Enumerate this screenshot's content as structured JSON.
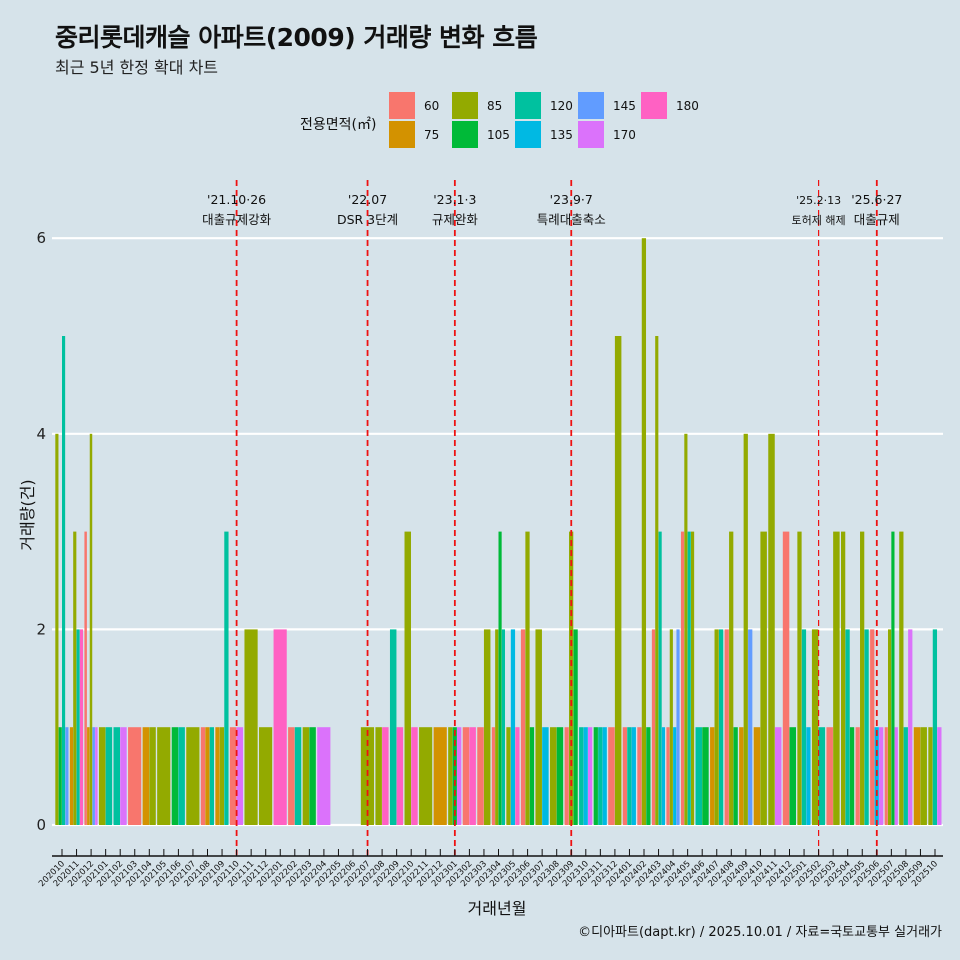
{
  "header": {
    "title": "중리롯데캐슬 아파트(2009) 거래량 변화 흐름",
    "subtitle": "최근 5년 한정 확대 차트"
  },
  "legend": {
    "title": "전용면적(㎡)",
    "items": [
      {
        "label": "60",
        "color": "#F8766D"
      },
      {
        "label": "75",
        "color": "#D39200"
      },
      {
        "label": "85",
        "color": "#93AA00"
      },
      {
        "label": "105",
        "color": "#00BA38"
      },
      {
        "label": "120",
        "color": "#00C19F"
      },
      {
        "label": "135",
        "color": "#00B9E3"
      },
      {
        "label": "145",
        "color": "#619CFF"
      },
      {
        "label": "170",
        "color": "#DB72FB"
      },
      {
        "label": "180",
        "color": "#FF61C3"
      }
    ]
  },
  "caption": "©디아파트(dapt.kr) / 2025.10.01 / 자료=국토교통부 실거래가",
  "chart_data": {
    "type": "bar",
    "title": "중리롯데캐슬 아파트(2009) 거래량 변화 흐름",
    "subtitle": "최근 5년 한정 확대 차트",
    "xlabel": "거래년월",
    "ylabel": "거래량(건)",
    "ylim": [
      0,
      6.3
    ],
    "yticks": [
      0,
      2,
      4,
      6
    ],
    "grid": true,
    "legend_position": "top",
    "categories": [
      "202010",
      "202011",
      "202012",
      "202101",
      "202102",
      "202103",
      "202104",
      "202105",
      "202106",
      "202107",
      "202108",
      "202109",
      "202110",
      "202111",
      "202112",
      "202201",
      "202202",
      "202203",
      "202204",
      "202205",
      "202206",
      "202207",
      "202208",
      "202209",
      "202210",
      "202211",
      "202212",
      "202301",
      "202302",
      "202303",
      "202304",
      "202305",
      "202306",
      "202307",
      "202308",
      "202309",
      "202310",
      "202311",
      "202312",
      "202401",
      "202402",
      "202403",
      "202404",
      "202405",
      "202406",
      "202407",
      "202408",
      "202409",
      "202410",
      "202411",
      "202412",
      "202501",
      "202502",
      "202503",
      "202504",
      "202505",
      "202506",
      "202507",
      "202508",
      "202509",
      "202510"
    ],
    "bars": [
      [
        [
          "85",
          4
        ],
        [
          "105",
          1
        ],
        [
          "120",
          5
        ],
        [
          "145",
          1
        ]
      ],
      [
        [
          "75",
          1
        ],
        [
          "85",
          3
        ],
        [
          "120",
          2
        ],
        [
          "180",
          2
        ]
      ],
      [
        [
          "60",
          3
        ],
        [
          "75",
          1
        ],
        [
          "85",
          4
        ],
        [
          "145",
          1
        ],
        [
          "170",
          1
        ]
      ],
      [
        [
          "85",
          1
        ],
        [
          "120",
          1
        ]
      ],
      [
        [
          "120",
          1
        ],
        [
          "170",
          1
        ]
      ],
      [
        [
          "60",
          1
        ]
      ],
      [
        [
          "75",
          1
        ],
        [
          "85",
          1
        ]
      ],
      [
        [
          "85",
          1
        ]
      ],
      [
        [
          "105",
          1
        ],
        [
          "120",
          1
        ]
      ],
      [
        [
          "85",
          1
        ]
      ],
      [
        [
          "60",
          1
        ],
        [
          "75",
          1
        ],
        [
          "120",
          1
        ]
      ],
      [
        [
          "75",
          1
        ],
        [
          "85",
          1
        ],
        [
          "120",
          3
        ]
      ],
      [
        [
          "60",
          1
        ],
        [
          "170",
          1
        ]
      ],
      [
        [
          "85",
          2
        ]
      ],
      [
        [
          "85",
          1
        ]
      ],
      [
        [
          "180",
          2
        ]
      ],
      [
        [
          "60",
          1
        ],
        [
          "120",
          1
        ]
      ],
      [
        [
          "85",
          1
        ],
        [
          "105",
          1
        ]
      ],
      [
        [
          "170",
          1
        ]
      ],
      [],
      [],
      [
        [
          "85",
          1
        ]
      ],
      [
        [
          "85",
          1
        ],
        [
          "180",
          1
        ]
      ],
      [
        [
          "120",
          2
        ],
        [
          "180",
          1
        ]
      ],
      [
        [
          "85",
          3
        ],
        [
          "180",
          1
        ]
      ],
      [
        [
          "85",
          1
        ]
      ],
      [
        [
          "75",
          1
        ]
      ],
      [
        [
          "85",
          1
        ],
        [
          "105",
          1
        ],
        [
          "170",
          1
        ]
      ],
      [
        [
          "60",
          1
        ],
        [
          "180",
          1
        ]
      ],
      [
        [
          "60",
          1
        ],
        [
          "85",
          2
        ]
      ],
      [
        [
          "60",
          1
        ],
        [
          "85",
          2
        ],
        [
          "105",
          3
        ],
        [
          "120",
          2
        ]
      ],
      [
        [
          "85",
          1
        ],
        [
          "135",
          2
        ],
        [
          "180",
          1
        ]
      ],
      [
        [
          "60",
          2
        ],
        [
          "85",
          3
        ],
        [
          "105",
          1
        ]
      ],
      [
        [
          "85",
          2
        ],
        [
          "135",
          1
        ]
      ],
      [
        [
          "85",
          1
        ],
        [
          "105",
          1
        ]
      ],
      [
        [
          "60",
          1
        ],
        [
          "85",
          3
        ],
        [
          "105",
          2
        ]
      ],
      [
        [
          "120",
          1
        ],
        [
          "135",
          1
        ],
        [
          "170",
          1
        ]
      ],
      [
        [
          "105",
          1
        ],
        [
          "120",
          1
        ],
        [
          "135",
          1
        ]
      ],
      [
        [
          "60",
          1
        ],
        [
          "85",
          5
        ]
      ],
      [
        [
          "60",
          1
        ],
        [
          "120",
          1
        ],
        [
          "135",
          1
        ]
      ],
      [
        [
          "60",
          1
        ],
        [
          "85",
          6
        ],
        [
          "105",
          1
        ]
      ],
      [
        [
          "60",
          2
        ],
        [
          "85",
          5
        ],
        [
          "120",
          3
        ],
        [
          "135",
          1
        ]
      ],
      [
        [
          "60",
          1
        ],
        [
          "85",
          2
        ],
        [
          "135",
          1
        ],
        [
          "145",
          2
        ]
      ],
      [
        [
          "60",
          3
        ],
        [
          "85",
          4
        ],
        [
          "120",
          3
        ],
        [
          "85",
          3
        ]
      ],
      [
        [
          "120",
          1
        ],
        [
          "105",
          1
        ]
      ],
      [
        [
          "75",
          1
        ],
        [
          "85",
          2
        ],
        [
          "120",
          2
        ]
      ],
      [
        [
          "60",
          2
        ],
        [
          "85",
          3
        ],
        [
          "105",
          1
        ]
      ],
      [
        [
          "75",
          1
        ],
        [
          "85",
          4
        ],
        [
          "145",
          2
        ]
      ],
      [
        [
          "75",
          1
        ],
        [
          "85",
          3
        ]
      ],
      [
        [
          "85",
          4
        ],
        [
          "170",
          1
        ]
      ],
      [
        [
          "60",
          3
        ],
        [
          "105",
          1
        ]
      ],
      [
        [
          "85",
          3
        ],
        [
          "120",
          2
        ],
        [
          "135",
          1
        ]
      ],
      [
        [
          "85",
          2
        ],
        [
          "120",
          1
        ]
      ],
      [
        [
          "60",
          1
        ],
        [
          "85",
          3
        ]
      ],
      [
        [
          "85",
          3
        ],
        [
          "120",
          2
        ],
        [
          "105",
          1
        ]
      ],
      [
        [
          "60",
          1
        ],
        [
          "85",
          3
        ],
        [
          "120",
          2
        ]
      ],
      [
        [
          "60",
          2
        ],
        [
          "135",
          1
        ],
        [
          "170",
          1
        ]
      ],
      [
        [
          "60",
          1
        ],
        [
          "85",
          2
        ],
        [
          "105",
          3
        ],
        [
          "170",
          1
        ]
      ],
      [
        [
          "85",
          3
        ],
        [
          "120",
          1
        ],
        [
          "170",
          2
        ]
      ],
      [
        [
          "75",
          1
        ],
        [
          "85",
          1
        ]
      ],
      [
        [
          "85",
          1
        ],
        [
          "120",
          2
        ],
        [
          "170",
          1
        ]
      ]
    ],
    "annotations": [
      {
        "x": "202110",
        "date": "'21.10·26",
        "label": "대출규제강화"
      },
      {
        "x": "202207",
        "date": "'22.07",
        "label": "DSR 3단계"
      },
      {
        "x": "202301",
        "date": "'23.1·3",
        "label": "규제완화"
      },
      {
        "x": "202309",
        "date": "'23.9·7",
        "label": "특례대출축소"
      },
      {
        "x": "202502",
        "date": "'25.2·13",
        "label": "토허제 해제"
      },
      {
        "x": "202506",
        "date": "'25.6·27",
        "label": "대출규제"
      }
    ]
  }
}
